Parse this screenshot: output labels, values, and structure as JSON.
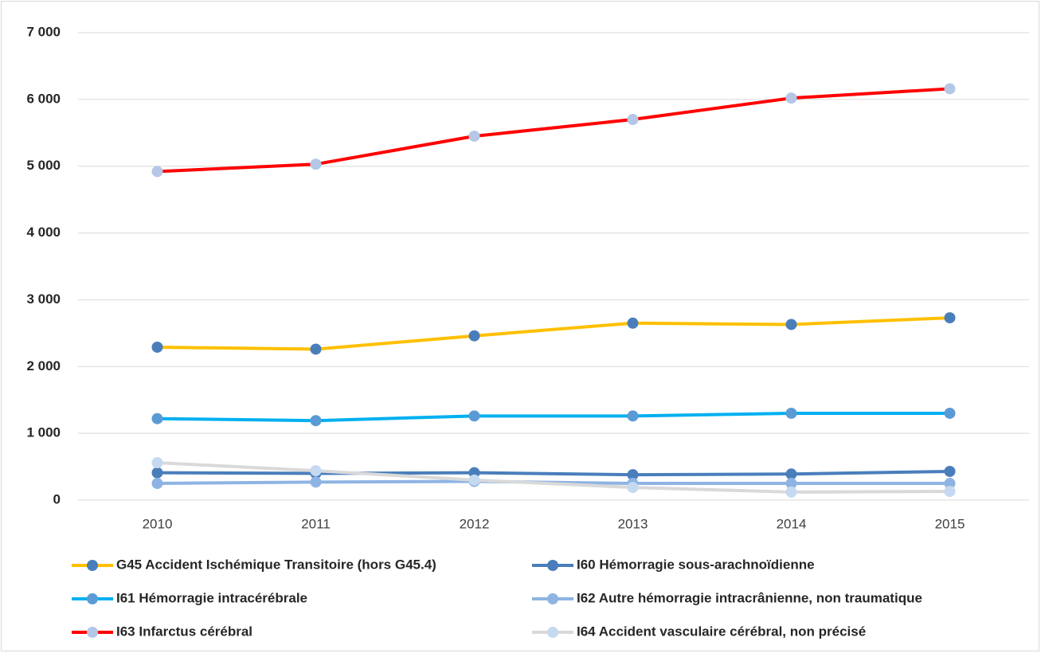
{
  "chart_data": {
    "type": "line",
    "categories": [
      "2010",
      "2011",
      "2012",
      "2013",
      "2014",
      "2015"
    ],
    "ylim": [
      0,
      7000
    ],
    "yticks": [
      {
        "value": 0,
        "label": "0"
      },
      {
        "value": 1000,
        "label": "1 000"
      },
      {
        "value": 2000,
        "label": "2 000"
      },
      {
        "value": 3000,
        "label": "3 000"
      },
      {
        "value": 4000,
        "label": "4 000"
      },
      {
        "value": 5000,
        "label": "5 000"
      },
      {
        "value": 6000,
        "label": "6 000"
      },
      {
        "value": 7000,
        "label": "7 000"
      }
    ],
    "grid": true,
    "legend": "bottom",
    "series": [
      {
        "name": "G45 Accident Ischémique Transitoire (hors G45.4)",
        "color": "#ffc000",
        "marker_color": "#4a7ebb",
        "values": [
          2290,
          2260,
          2460,
          2650,
          2630,
          2730
        ]
      },
      {
        "name": "I60 Hémorragie sous-arachnoïdienne",
        "color": "#4a7ebb",
        "marker_color": "#4a7ebb",
        "values": [
          410,
          400,
          410,
          380,
          390,
          430
        ]
      },
      {
        "name": "I61 Hémorragie intracérébrale",
        "color": "#00b0f0",
        "marker_color": "#5b9bd5",
        "values": [
          1220,
          1190,
          1260,
          1260,
          1300,
          1300
        ]
      },
      {
        "name": "I62 Autre hémorragie intracrânienne, non traumatique",
        "color": "#8eb4e3",
        "marker_color": "#8eb4e3",
        "values": [
          250,
          270,
          280,
          250,
          250,
          250
        ]
      },
      {
        "name": "I63 Infarctus cérébral",
        "color": "#ff0000",
        "marker_color": "#b4c7e7",
        "values": [
          4920,
          5030,
          5450,
          5700,
          6020,
          6160
        ]
      },
      {
        "name": "I64 Accident vasculaire cérébral, non précisé",
        "color": "#d9d9d9",
        "marker_color": "#c5d9f1",
        "values": [
          560,
          440,
          300,
          190,
          120,
          130
        ]
      }
    ]
  }
}
